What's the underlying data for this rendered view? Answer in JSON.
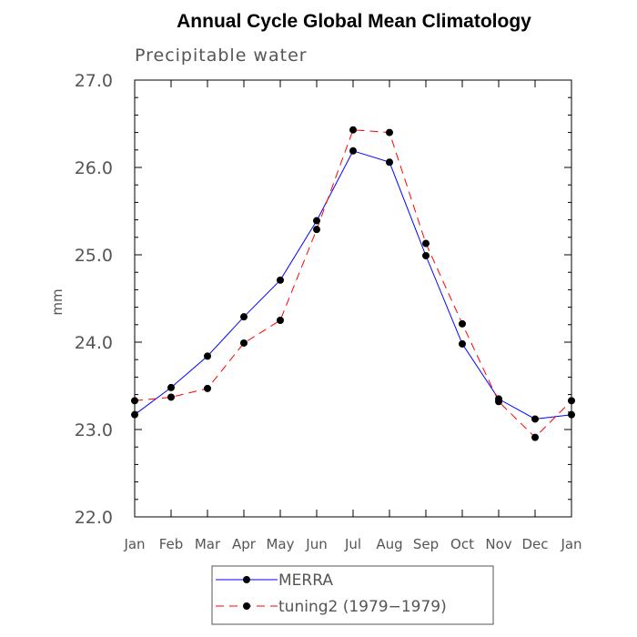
{
  "chart_data": {
    "type": "line",
    "title": "Annual Cycle Global Mean Climatology",
    "subtitle": "Precipitable water",
    "xlabel": "",
    "ylabel": "mm",
    "categories": [
      "Jan",
      "Feb",
      "Mar",
      "Apr",
      "May",
      "Jun",
      "Jul",
      "Aug",
      "Sep",
      "Oct",
      "Nov",
      "Dec",
      "Jan"
    ],
    "ylim": [
      22.0,
      27.0
    ],
    "yticks": [
      "22.0",
      "23.0",
      "24.0",
      "25.0",
      "26.0",
      "27.0"
    ],
    "grid": false,
    "legend_position": "bottom-center",
    "series": [
      {
        "name": "MERRA",
        "color": "#0000ff",
        "dash": "solid",
        "marker": "circle",
        "values": [
          23.17,
          23.48,
          23.84,
          24.29,
          24.71,
          25.39,
          26.19,
          26.06,
          24.99,
          23.98,
          23.35,
          23.12,
          23.17
        ]
      },
      {
        "name": "tuning2 (1979−1979)",
        "color": "#ff0000",
        "dash": "dashed",
        "marker": "circle",
        "values": [
          23.33,
          23.37,
          23.47,
          23.99,
          24.25,
          25.29,
          26.43,
          26.4,
          25.13,
          24.21,
          23.32,
          22.91,
          23.33
        ]
      }
    ]
  }
}
